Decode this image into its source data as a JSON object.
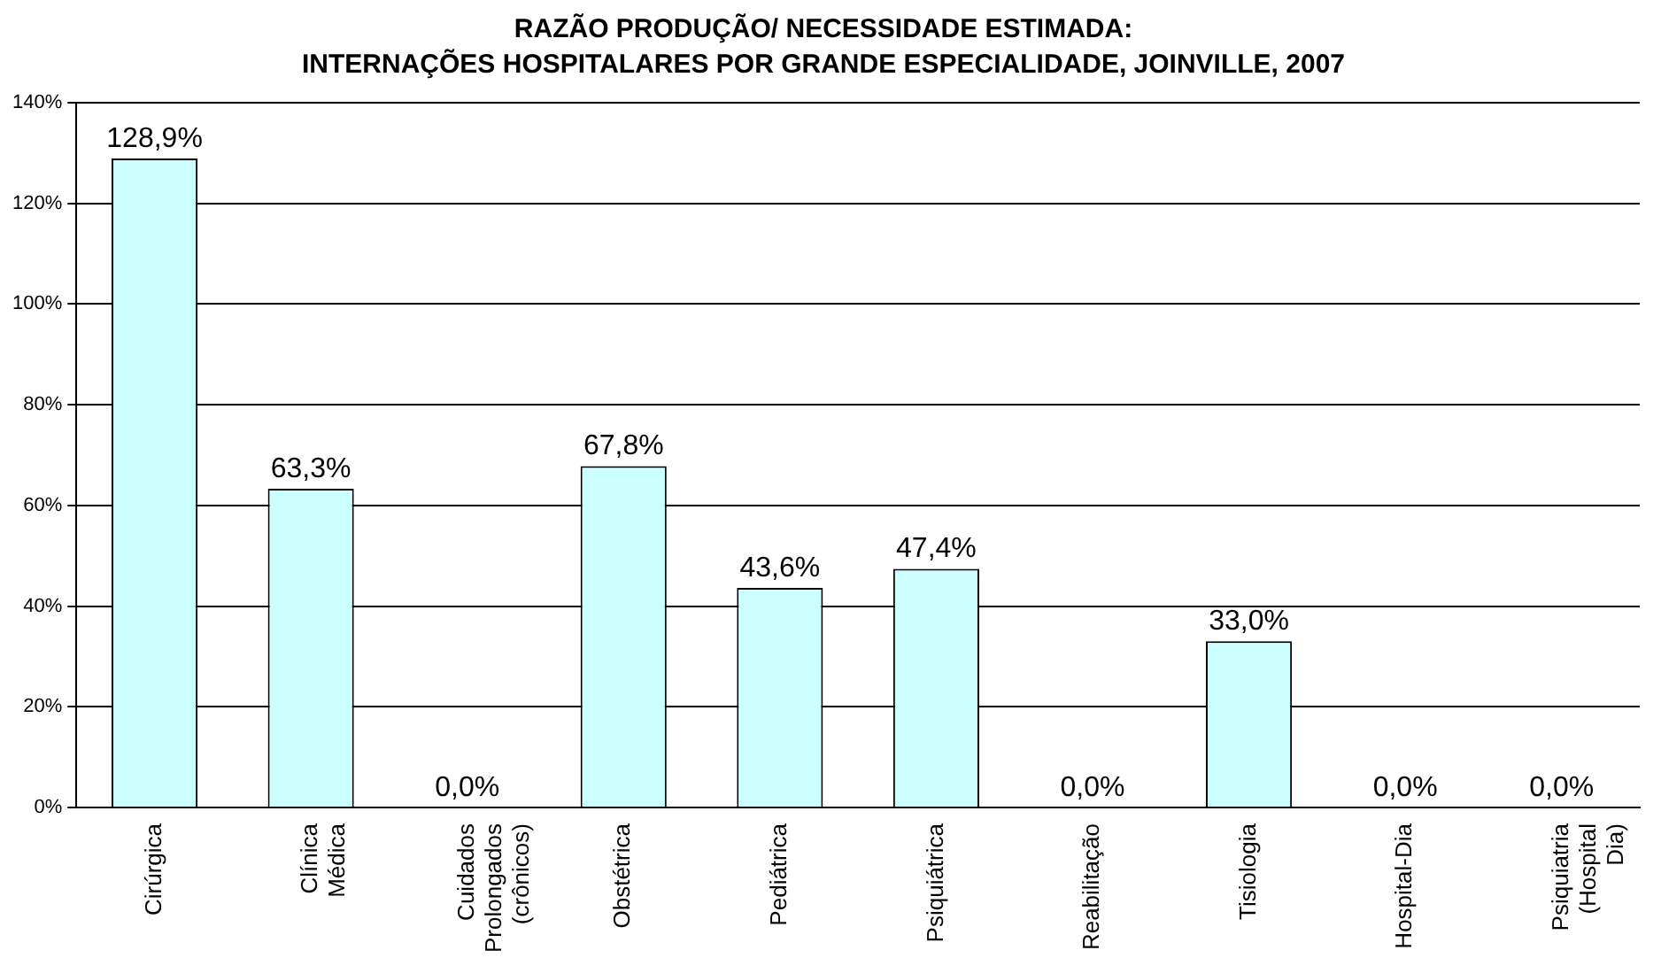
{
  "chart_data": {
    "type": "bar",
    "title": "RAZÃO PRODUÇÃO/ NECESSIDADE ESTIMADA:",
    "subtitle": "INTERNAÇÕES HOSPITALARES POR GRANDE ESPECIALIDADE, JOINVILLE, 2007",
    "categories": [
      "Cirúrgica",
      "Clínica Médica",
      "Cuidados Prolongados (crônicos)",
      "Obstétrica",
      "Pediátrica",
      "Psiquiátrica",
      "Reabilitação",
      "Tisiologia",
      "Hospital-Dia",
      "Psiquiatria (Hospital Dia)"
    ],
    "values": [
      128.9,
      63.3,
      0,
      67.8,
      43.6,
      47.4,
      0,
      33.0,
      0,
      0
    ],
    "value_labels": [
      "128,9%",
      "63,3%",
      "0,0%",
      "67,8%",
      "43,6%",
      "47,4%",
      "0,0%",
      "33,0%",
      "0,0%",
      "0,0%"
    ],
    "color": "#ccffff",
    "ylim": [
      0,
      140
    ],
    "yticks": [
      {
        "value": 0,
        "label": "0%"
      },
      {
        "value": 20,
        "label": "20%"
      },
      {
        "value": 40,
        "label": "40%"
      },
      {
        "value": 60,
        "label": "60%"
      },
      {
        "value": 80,
        "label": "80%"
      },
      {
        "value": 100,
        "label": "100%"
      },
      {
        "value": 120,
        "label": "120%"
      },
      {
        "value": 140,
        "label": "140%"
      }
    ],
    "grid": "y",
    "legend": false
  }
}
